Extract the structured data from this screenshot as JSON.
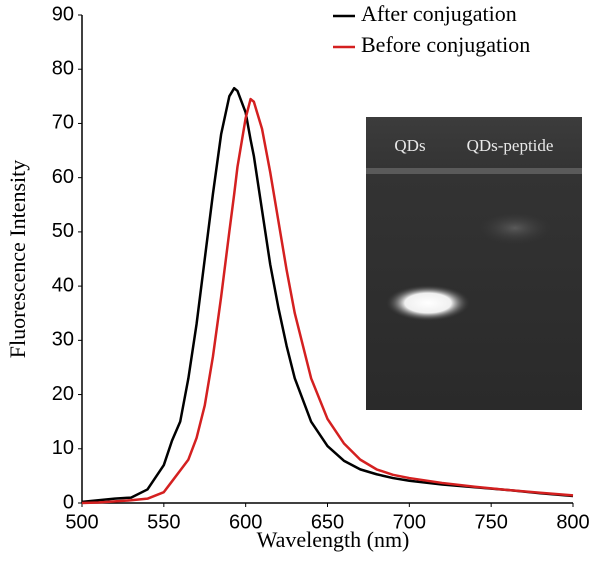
{
  "chart_data": {
    "type": "line",
    "x_label": "Wavelength (nm)",
    "y_label": "Fluorescence Intensity",
    "x": [
      500,
      510,
      520,
      530,
      540,
      550,
      555,
      560,
      565,
      570,
      575,
      580,
      585,
      590,
      593,
      595,
      600,
      603,
      605,
      610,
      615,
      620,
      625,
      630,
      640,
      650,
      660,
      670,
      680,
      690,
      700,
      720,
      740,
      760,
      780,
      800
    ],
    "series": [
      {
        "name": "After conjugation",
        "color": "#000000",
        "values": [
          0.2,
          0.5,
          0.8,
          1,
          2.5,
          7,
          11.5,
          15,
          23,
          33,
          45,
          57,
          68,
          75,
          76.5,
          76,
          72,
          67,
          64,
          54,
          44,
          36,
          29,
          23,
          15,
          10.5,
          7.8,
          6.2,
          5.3,
          4.6,
          4.1,
          3.4,
          2.9,
          2.4,
          1.8,
          1.3
        ]
      },
      {
        "name": "Before conjugation",
        "color": "#d42020",
        "values": [
          0,
          0.1,
          0.3,
          0.5,
          0.8,
          2,
          4,
          6,
          8,
          12,
          18,
          27,
          38,
          50,
          57,
          62,
          71,
          74.5,
          74,
          69,
          61,
          52,
          43,
          35,
          23,
          15.5,
          11,
          8,
          6.2,
          5.2,
          4.6,
          3.7,
          3,
          2.4,
          1.9,
          1.4
        ]
      }
    ],
    "xlim": [
      500,
      800
    ],
    "xticks": [
      500,
      550,
      600,
      650,
      700,
      750,
      800
    ],
    "ylim": [
      0,
      90
    ],
    "yticks": [
      0,
      10,
      20,
      30,
      40,
      50,
      60,
      70,
      80,
      90
    ],
    "legend": "upper right",
    "inset_labels": [
      "QDs",
      "QDs-peptide"
    ]
  }
}
